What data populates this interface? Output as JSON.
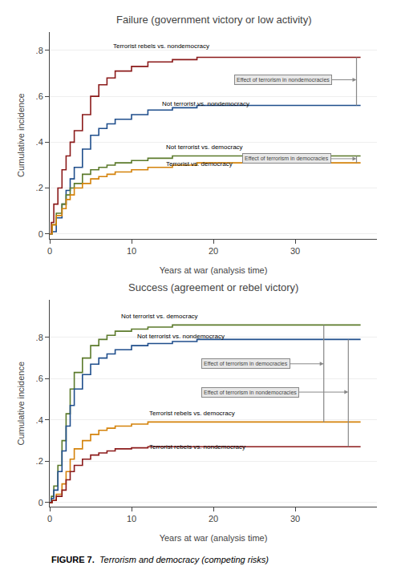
{
  "caption": [
    "FIGURE 7.",
    "  Terrorism and democracy (competing risks)"
  ],
  "chart_data": [
    {
      "type": "step",
      "title": "Failure (government victory or low activity)",
      "xlabel": "Years at war (analysis time)",
      "ylabel": "Cumulative incidence",
      "xlim": [
        0,
        40
      ],
      "xticks": [
        0,
        10,
        20,
        30
      ],
      "ylim": [
        -0.02,
        0.88
      ],
      "yticks": [
        0,
        {
          "value": 0.2,
          "label": ".2"
        },
        {
          "value": 0.4,
          "label": ".4"
        },
        {
          "value": 0.6,
          "label": ".6"
        },
        {
          "value": 0.8,
          "label": ".8"
        }
      ],
      "grid": "y",
      "series": [
        {
          "name": "Terrorist rebels vs. nondemocracy",
          "color": "#8B1A1A",
          "x": [
            0,
            0.2,
            0.5,
            1,
            1.5,
            2,
            2.5,
            3,
            4,
            5,
            6,
            7,
            8,
            10,
            12,
            15,
            18,
            20,
            22,
            25,
            38
          ],
          "values": [
            0,
            0.05,
            0.13,
            0.2,
            0.28,
            0.34,
            0.4,
            0.45,
            0.52,
            0.6,
            0.65,
            0.68,
            0.71,
            0.73,
            0.75,
            0.76,
            0.77,
            0.77,
            0.77,
            0.77,
            0.77
          ],
          "label_x": 7.5,
          "label_y": 0.795
        },
        {
          "name": "Not terrorist vs. nondemocracy",
          "color": "#1F4E8C",
          "x": [
            0,
            0.3,
            0.8,
            1.5,
            2,
            2.5,
            3,
            4,
            5,
            6,
            7,
            8,
            10,
            12,
            15,
            18,
            20,
            22,
            25,
            38
          ],
          "values": [
            0,
            0.01,
            0.07,
            0.13,
            0.19,
            0.24,
            0.29,
            0.37,
            0.43,
            0.46,
            0.48,
            0.5,
            0.52,
            0.54,
            0.55,
            0.56,
            0.56,
            0.56,
            0.56,
            0.56
          ],
          "label_x": 13.5,
          "label_y": 0.545
        },
        {
          "name": "Not terrorist vs. democracy",
          "color": "#5B7A2B",
          "x": [
            0,
            0.3,
            0.8,
            1.5,
            2,
            2.5,
            3,
            4,
            5,
            6,
            7,
            8,
            10,
            12,
            15,
            18,
            20,
            22,
            25,
            38
          ],
          "values": [
            0,
            0.04,
            0.09,
            0.13,
            0.17,
            0.2,
            0.22,
            0.26,
            0.28,
            0.29,
            0.3,
            0.31,
            0.32,
            0.33,
            0.34,
            0.34,
            0.34,
            0.34,
            0.34,
            0.34
          ],
          "label_x": 14.0,
          "label_y": 0.355
        },
        {
          "name": "Terrorist vs. democracy",
          "color": "#D4820A",
          "x": [
            0,
            0.3,
            0.8,
            1.5,
            2,
            2.5,
            3,
            4,
            5,
            6,
            7,
            8,
            10,
            12,
            15,
            18,
            20,
            22,
            25,
            38
          ],
          "values": [
            0,
            0.04,
            0.08,
            0.11,
            0.15,
            0.17,
            0.2,
            0.22,
            0.24,
            0.25,
            0.26,
            0.27,
            0.28,
            0.29,
            0.3,
            0.31,
            0.31,
            0.31,
            0.31,
            0.31
          ],
          "label_x": 14.0,
          "label_y": 0.282
        }
      ],
      "annotations": [
        {
          "text": "Effect of terrorism in nondemocracies",
          "x": 22.5,
          "y": 0.672,
          "arrow_x": 37.5,
          "span": [
            0.56,
            0.77
          ]
        },
        {
          "text": "Effect of terrorism in democracies",
          "x": 23.5,
          "y": 0.328,
          "arrow_x": 37.5,
          "span": [
            0.31,
            0.34
          ]
        }
      ]
    },
    {
      "type": "step",
      "title": "Success (agreement or rebel victory)",
      "xlabel": "Years at war (analysis time)",
      "ylabel": "Cumulative incidence",
      "xlim": [
        0,
        40
      ],
      "xticks": [
        0,
        10,
        20,
        30
      ],
      "ylim": [
        -0.02,
        0.98
      ],
      "yticks": [
        0,
        {
          "value": 0.2,
          "label": ".2"
        },
        {
          "value": 0.4,
          "label": ".4"
        },
        {
          "value": 0.6,
          "label": ".6"
        },
        {
          "value": 0.8,
          "label": ".8"
        }
      ],
      "grid": "y",
      "series": [
        {
          "name": "Not terrorist vs. democracy",
          "color": "#5B7A2B",
          "x": [
            0,
            0.2,
            0.5,
            1,
            1.5,
            2,
            2.5,
            3,
            4,
            5,
            6,
            7,
            8,
            10,
            12,
            15,
            18,
            20,
            22,
            25,
            38
          ],
          "values": [
            0,
            0.03,
            0.08,
            0.18,
            0.3,
            0.43,
            0.55,
            0.63,
            0.7,
            0.76,
            0.79,
            0.81,
            0.83,
            0.84,
            0.85,
            0.86,
            0.86,
            0.86,
            0.86,
            0.86,
            0.86
          ],
          "label_x": 8.5,
          "label_y": 0.878
        },
        {
          "name": "Not terrorist vs. nondemocracy",
          "color": "#1F4E8C",
          "x": [
            0,
            0.2,
            0.5,
            1,
            1.5,
            2,
            2.5,
            3,
            4,
            5,
            6,
            7,
            8,
            10,
            12,
            15,
            18,
            20,
            22,
            25,
            38
          ],
          "values": [
            0,
            0.02,
            0.06,
            0.15,
            0.25,
            0.37,
            0.47,
            0.55,
            0.62,
            0.67,
            0.7,
            0.72,
            0.74,
            0.76,
            0.77,
            0.78,
            0.79,
            0.79,
            0.79,
            0.79,
            0.79
          ],
          "label_x": 10.5,
          "label_y": 0.78
        },
        {
          "name": "Terrorist rebels vs. democracy",
          "color": "#D4820A",
          "x": [
            0,
            0.3,
            0.8,
            1.5,
            2,
            2.5,
            3,
            4,
            5,
            6,
            7,
            8,
            10,
            12,
            15,
            18,
            20,
            22,
            25,
            38
          ],
          "values": [
            0,
            0.01,
            0.04,
            0.09,
            0.15,
            0.21,
            0.26,
            0.3,
            0.33,
            0.35,
            0.36,
            0.37,
            0.38,
            0.39,
            0.39,
            0.39,
            0.39,
            0.39,
            0.39,
            0.39
          ],
          "label_x": 12.0,
          "label_y": 0.408
        },
        {
          "name": "Terrorist rebels vs. nondemocracy",
          "color": "#8B1A1A",
          "x": [
            0,
            0.3,
            0.8,
            1.5,
            2,
            2.5,
            3,
            4,
            5,
            6,
            7,
            8,
            10,
            12,
            15,
            18,
            20,
            22,
            25,
            38
          ],
          "values": [
            0,
            0.01,
            0.03,
            0.06,
            0.11,
            0.15,
            0.18,
            0.21,
            0.23,
            0.24,
            0.25,
            0.26,
            0.265,
            0.27,
            0.27,
            0.27,
            0.27,
            0.27,
            0.27,
            0.27
          ],
          "label_x": 12.0,
          "label_y": 0.245
        }
      ],
      "annotations": [
        {
          "text": "Effect of terrorism in democracies",
          "x": 18.5,
          "y": 0.672,
          "arrow_x": 33.5,
          "span": [
            0.39,
            0.86
          ]
        },
        {
          "text": "Effect of terrorism in nondemocracies",
          "x": 18.5,
          "y": 0.535,
          "arrow_x": 36.5,
          "span": [
            0.27,
            0.79
          ]
        }
      ]
    }
  ]
}
